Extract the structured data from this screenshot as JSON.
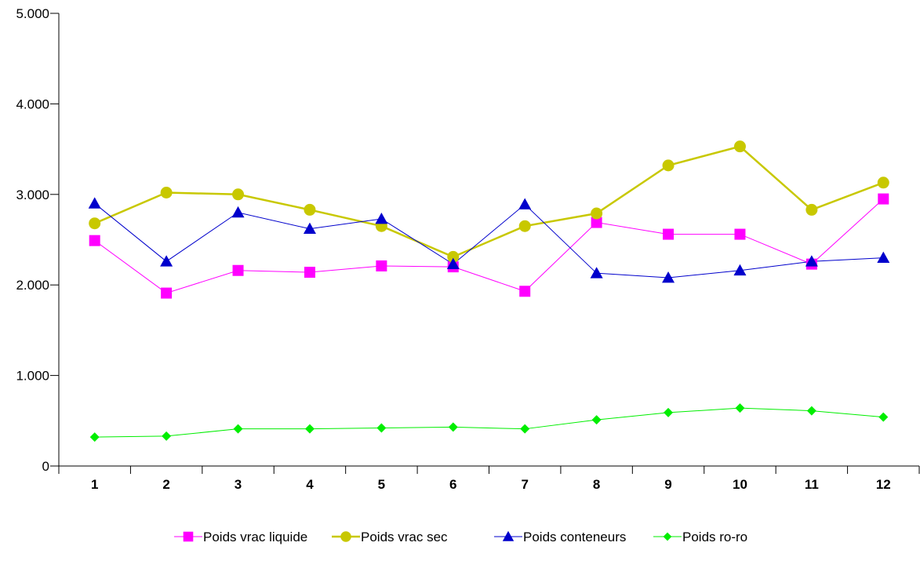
{
  "chart_data": {
    "type": "line",
    "x": [
      "1",
      "2",
      "3",
      "4",
      "5",
      "6",
      "7",
      "8",
      "9",
      "10",
      "11",
      "12"
    ],
    "ylim": [
      0,
      5000
    ],
    "yticks": [
      {
        "value": 0,
        "label": "0"
      },
      {
        "value": 1000,
        "label": "1.000"
      },
      {
        "value": 2000,
        "label": "2.000"
      },
      {
        "value": 3000,
        "label": "3.000"
      },
      {
        "value": 4000,
        "label": "4.000"
      },
      {
        "value": 5000,
        "label": "5.000"
      }
    ],
    "grid": false,
    "legend_position": "bottom",
    "series": [
      {
        "name": "Poids vrac liquide",
        "color": "#ff00ff",
        "marker": "square",
        "values": [
          2490,
          1910,
          2160,
          2140,
          2210,
          2200,
          1930,
          2690,
          2560,
          2560,
          2230,
          2950
        ]
      },
      {
        "name": "Poids vrac sec",
        "color": "#c8c800",
        "marker": "circle",
        "values": [
          2680,
          3020,
          3000,
          2830,
          2650,
          2310,
          2650,
          2790,
          3320,
          3530,
          2830,
          3130
        ]
      },
      {
        "name": "Poids conteneurs",
        "color": "#0000cc",
        "marker": "triangle",
        "values": [
          2900,
          2260,
          2800,
          2620,
          2730,
          2230,
          2890,
          2130,
          2080,
          2160,
          2260,
          2300
        ]
      },
      {
        "name": "Poids ro-ro",
        "color": "#00ee00",
        "marker": "diamond",
        "values": [
          320,
          330,
          410,
          410,
          420,
          430,
          410,
          510,
          590,
          640,
          610,
          540
        ]
      }
    ]
  }
}
